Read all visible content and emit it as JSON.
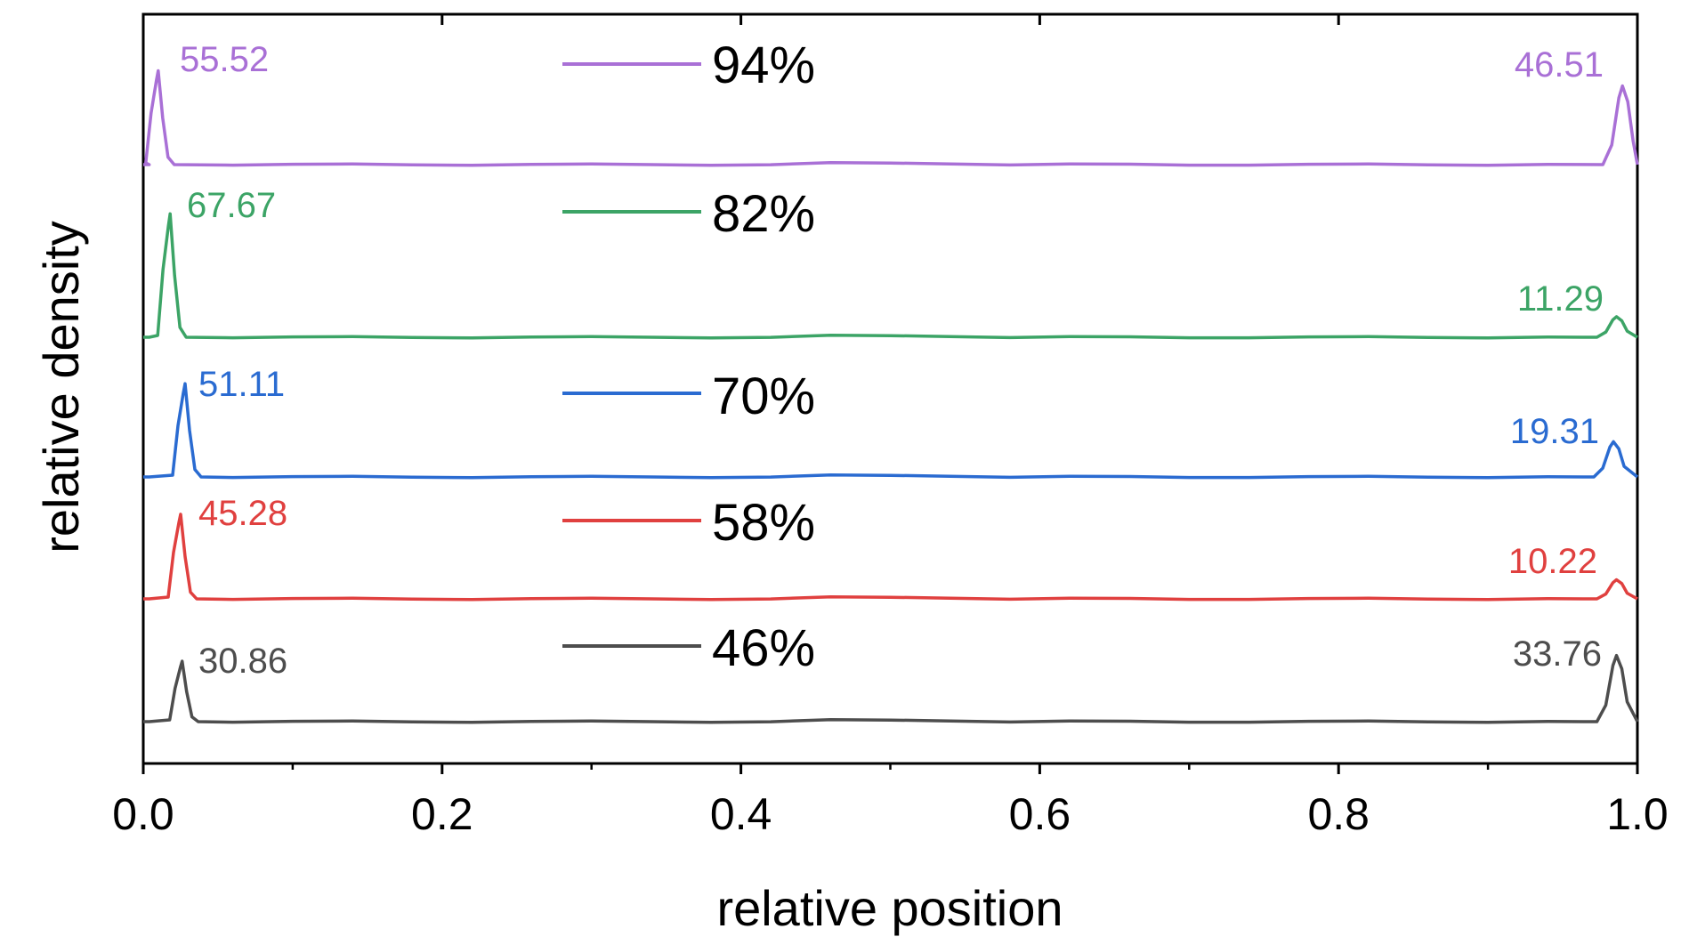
{
  "chart_data": {
    "type": "line",
    "xlabel": "relative position",
    "ylabel": "relative density",
    "xlim": [
      0.0,
      1.0
    ],
    "x_ticks": [
      "0.0",
      "0.2",
      "0.4",
      "0.6",
      "0.8",
      "1.0"
    ],
    "x_tick_values": [
      0.0,
      0.2,
      0.4,
      0.6,
      0.8,
      1.0
    ],
    "x_minor_tick_values": [
      0.1,
      0.3,
      0.5,
      0.7,
      0.9
    ],
    "y_ticks_shown": false,
    "grid": false,
    "legend_placement": "inline-center",
    "series": [
      {
        "name": "94%",
        "color": "#a970d6",
        "stack_level": 4,
        "peaks": [
          {
            "x": 0.01,
            "value": 55.52,
            "label": "55.52"
          },
          {
            "x": 0.99,
            "value": 46.51,
            "label": "46.51"
          }
        ]
      },
      {
        "name": "82%",
        "color": "#3ca466",
        "stack_level": 3,
        "peaks": [
          {
            "x": 0.018,
            "value": 67.67,
            "label": "67.67"
          },
          {
            "x": 0.986,
            "value": 11.29,
            "label": "11.29"
          }
        ]
      },
      {
        "name": "70%",
        "color": "#2a6bd1",
        "stack_level": 2,
        "peaks": [
          {
            "x": 0.028,
            "value": 51.11,
            "label": "51.11"
          },
          {
            "x": 0.984,
            "value": 19.31,
            "label": "19.31"
          }
        ]
      },
      {
        "name": "58%",
        "color": "#e0403f",
        "stack_level": 1,
        "peaks": [
          {
            "x": 0.025,
            "value": 45.28,
            "label": "45.28"
          },
          {
            "x": 0.986,
            "value": 10.22,
            "label": "10.22"
          }
        ]
      },
      {
        "name": "46%",
        "color": "#4d4d4d",
        "stack_level": 0,
        "peaks": [
          {
            "x": 0.026,
            "value": 30.86,
            "label": "30.86"
          },
          {
            "x": 0.986,
            "value": 33.76,
            "label": "33.76"
          }
        ]
      }
    ]
  }
}
